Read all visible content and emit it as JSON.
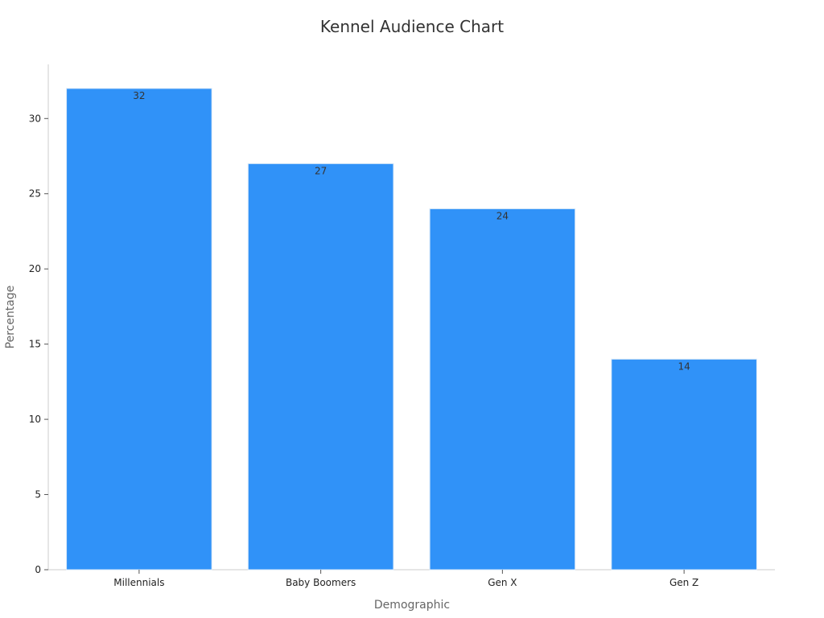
{
  "chart_data": {
    "type": "bar",
    "title": "Kennel Audience Chart",
    "xlabel": "Demographic",
    "ylabel": "Percentage",
    "categories": [
      "Millennials",
      "Baby Boomers",
      "Gen X",
      "Gen Z"
    ],
    "values": [
      32,
      27,
      24,
      14
    ],
    "data_labels": [
      "32",
      "27",
      "24",
      "14"
    ],
    "ylim": [
      0,
      33.6
    ],
    "yticks": [
      0,
      5,
      10,
      15,
      20,
      25,
      30
    ],
    "ytick_labels": [
      "0",
      "5",
      "10",
      "15",
      "20",
      "25",
      "30"
    ],
    "bar_color": "#3092f8",
    "grid": false,
    "legend": "none"
  }
}
